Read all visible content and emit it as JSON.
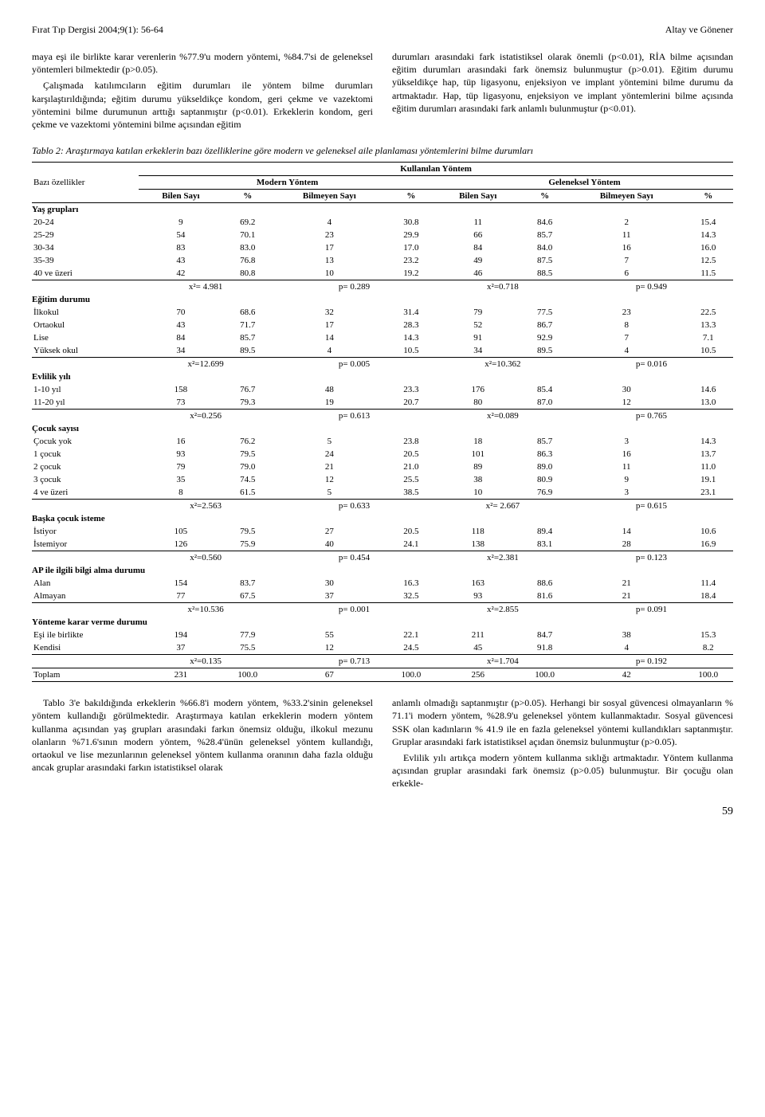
{
  "header": {
    "journal": "Fırat Tıp Dergisi 2004;9(1): 56-64",
    "authors": "Altay ve Gönener"
  },
  "text": {
    "left_p1": "maya eşi ile birlikte karar verenlerin %77.9'u modern yöntemi, %84.7'si de geleneksel yöntemleri bilmektedir (p>0.05).",
    "left_p2": "Çalışmada katılımcıların eğitim durumları ile yöntem bilme durumları karşılaştırıldığında; eğitim durumu yükseldikçe kondom, geri çekme ve vazektomi yöntemini bilme durumunun arttığı saptanmıştır (p<0.01). Erkeklerin kondom, geri çekme ve vazektomi yöntemini bilme açısından eğitim",
    "right_p1": "durumları arasındaki fark istatistiksel olarak önemli (p<0.01), RİA bilme açısından eğitim durumları arasındaki fark önemsiz bulunmuştur (p>0.01). Eğitim durumu yükseldikçe hap, tüp ligasyonu, enjeksiyon ve implant yöntemini bilme durumu da artmaktadır. Hap, tüp ligasyonu, enjeksiyon ve implant yöntemlerini bilme açısında eğitim durumları arasındaki fark anlamlı bulunmuştur (p<0.01).",
    "bottom_left_p1": "Tablo 3'e bakıldığında erkeklerin %66.8'i modern yöntem, %33.2'sinin geleneksel yöntem kullandığı görülmektedir. Araştırmaya katılan erkeklerin modern yöntem kullanma açısından yaş grupları arasındaki farkın önemsiz olduğu, ilkokul mezunu olanların %71.6'sının modern yöntem, %28.4'ünün geleneksel yöntem kullandığı, ortaokul ve lise mezunlarının geleneksel yöntem kullanma oranının daha fazla olduğu ancak gruplar arasındaki farkın istatistiksel olarak",
    "bottom_right_p1": "anlamlı olmadığı saptanmıştır (p>0.05). Herhangi bir sosyal güvencesi olmayanların % 71.1'i modern yöntem, %28.9'u geleneksel yöntem kullanmaktadır. Sosyal güvencesi SSK olan kadınların % 41.9 ile en fazla geleneksel yöntemi kullandıkları saptanmıştır. Gruplar arasındaki fark istatistiksel açıdan önemsiz bulunmuştur (p>0.05).",
    "bottom_right_p2": "Evlilik yılı artıkça modern yöntem kullanma sıklığı artmaktadır. Yöntem kullanma açısından gruplar arasındaki fark önemsiz (p>0.05) bulunmuştur. Bir çocuğu olan erkekle-"
  },
  "table": {
    "caption": "Tablo 2: Araştırmaya katılan erkeklerin bazı özelliklerine göre modern ve geleneksel aile planlaması yöntemlerini bilme durumları",
    "superheader": "Kullanılan Yöntem",
    "header_left": "Bazı özellikler",
    "header_modern": "Modern Yöntem",
    "header_geleneksel": "Geleneksel Yöntem",
    "col_bilen": "Bilen Sayı",
    "col_pct": "%",
    "col_bilmeyen": "Bilmeyen Sayı",
    "sections": {
      "yas": {
        "label": "Yaş grupları",
        "rows": [
          {
            "label": "20-24",
            "v": [
              "9",
              "69.2",
              "4",
              "30.8",
              "11",
              "84.6",
              "2",
              "15.4"
            ]
          },
          {
            "label": "25-29",
            "v": [
              "54",
              "70.1",
              "23",
              "29.9",
              "66",
              "85.7",
              "11",
              "14.3"
            ]
          },
          {
            "label": "30-34",
            "v": [
              "83",
              "83.0",
              "17",
              "17.0",
              "84",
              "84.0",
              "16",
              "16.0"
            ]
          },
          {
            "label": "35-39",
            "v": [
              "43",
              "76.8",
              "13",
              "23.2",
              "49",
              "87.5",
              "7",
              "12.5"
            ]
          },
          {
            "label": "40 ve üzeri",
            "v": [
              "42",
              "80.8",
              "10",
              "19.2",
              "46",
              "88.5",
              "6",
              "11.5"
            ]
          }
        ],
        "stat": {
          "x2a": "x²= 4.981",
          "pa": "p= 0.289",
          "x2b": "x²=0.718",
          "pb": "p= 0.949"
        }
      },
      "egitim": {
        "label": "Eğitim  durumu",
        "rows": [
          {
            "label": "İlkokul",
            "v": [
              "70",
              "68.6",
              "32",
              "31.4",
              "79",
              "77.5",
              "23",
              "22.5"
            ]
          },
          {
            "label": "Ortaokul",
            "v": [
              "43",
              "71.7",
              "17",
              "28.3",
              "52",
              "86.7",
              "8",
              "13.3"
            ]
          },
          {
            "label": "Lise",
            "v": [
              "84",
              "85.7",
              "14",
              "14.3",
              "91",
              "92.9",
              "7",
              "7.1"
            ]
          },
          {
            "label": "Yüksek okul",
            "v": [
              "34",
              "89.5",
              "4",
              "10.5",
              "34",
              "89.5",
              "4",
              "10.5"
            ]
          }
        ],
        "stat": {
          "x2a": "x²=12.699",
          "pa": "p= 0.005",
          "x2b": "x²=10.362",
          "pb": "p= 0.016"
        }
      },
      "evlilik": {
        "label": "Evlilik yılı",
        "rows": [
          {
            "label": "1-10 yıl",
            "v": [
              "158",
              "76.7",
              "48",
              "23.3",
              "176",
              "85.4",
              "30",
              "14.6"
            ]
          },
          {
            "label": "11-20 yıl",
            "v": [
              "73",
              "79.3",
              "19",
              "20.7",
              "80",
              "87.0",
              "12",
              "13.0"
            ]
          }
        ],
        "stat": {
          "x2a": "x²=0.256",
          "pa": "p= 0.613",
          "x2b": "x²=0.089",
          "pb": "p= 0.765"
        }
      },
      "cocuk": {
        "label": "Çocuk sayısı",
        "rows": [
          {
            "label": "Çocuk yok",
            "v": [
              "16",
              "76.2",
              "5",
              "23.8",
              "18",
              "85.7",
              "3",
              "14.3"
            ]
          },
          {
            "label": "1 çocuk",
            "v": [
              "93",
              "79.5",
              "24",
              "20.5",
              "101",
              "86.3",
              "16",
              "13.7"
            ]
          },
          {
            "label": "2 çocuk",
            "v": [
              "79",
              "79.0",
              "21",
              "21.0",
              "89",
              "89.0",
              "11",
              "11.0"
            ]
          },
          {
            "label": "3 çocuk",
            "v": [
              "35",
              "74.5",
              "12",
              "25.5",
              "38",
              "80.9",
              "9",
              "19.1"
            ]
          },
          {
            "label": "4 ve üzeri",
            "v": [
              "8",
              "61.5",
              "5",
              "38.5",
              "10",
              "76.9",
              "3",
              "23.1"
            ]
          }
        ],
        "stat": {
          "x2a": "x²=2.563",
          "pa": "p= 0.633",
          "x2b": "x²= 2.667",
          "pb": "p= 0.615"
        }
      },
      "baska": {
        "label": "Başka çocuk isteme",
        "rows": [
          {
            "label": "İstiyor",
            "v": [
              "105",
              "79.5",
              "27",
              "20.5",
              "118",
              "89.4",
              "14",
              "10.6"
            ]
          },
          {
            "label": "İstemiyor",
            "v": [
              "126",
              "75.9",
              "40",
              "24.1",
              "138",
              "83.1",
              "28",
              "16.9"
            ]
          }
        ],
        "stat": {
          "x2a": "x²=0.560",
          "pa": "p= 0.454",
          "x2b": "x²=2.381",
          "pb": "p= 0.123"
        }
      },
      "ap": {
        "label": "AP ile ilgili bilgi alma durumu",
        "rows": [
          {
            "label": "Alan",
            "v": [
              "154",
              "83.7",
              "30",
              "16.3",
              "163",
              "88.6",
              "21",
              "11.4"
            ]
          },
          {
            "label": "Almayan",
            "v": [
              "77",
              "67.5",
              "37",
              "32.5",
              "93",
              "81.6",
              "21",
              "18.4"
            ]
          }
        ],
        "stat": {
          "x2a": "x²=10.536",
          "pa": "p= 0.001",
          "x2b": "x²=2.855",
          "pb": "p= 0.091"
        }
      },
      "karar": {
        "label": "Yönteme karar verme durumu",
        "rows": [
          {
            "label": "Eşi ile birlikte",
            "v": [
              "194",
              "77.9",
              "55",
              "22.1",
              "211",
              "84.7",
              "38",
              "15.3"
            ]
          },
          {
            "label": "Kendisi",
            "v": [
              "37",
              "75.5",
              "12",
              "24.5",
              "45",
              "91.8",
              "4",
              "8.2"
            ]
          }
        ],
        "stat": {
          "x2a": "x²=0.135",
          "pa": "p= 0.713",
          "x2b": "x²=1.704",
          "pb": "p= 0.192"
        }
      }
    },
    "toplam": {
      "label": "Toplam",
      "v": [
        "231",
        "100.0",
        "67",
        "100.0",
        "256",
        "100.0",
        "42",
        "100.0"
      ]
    }
  },
  "page_number": "59"
}
